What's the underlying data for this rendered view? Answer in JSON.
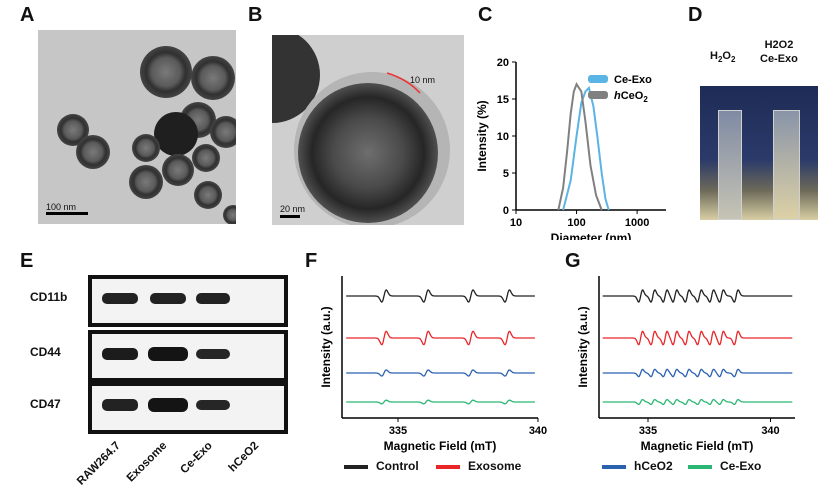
{
  "panels": {
    "A": {
      "label": "A",
      "scale": "100 nm"
    },
    "B": {
      "label": "B",
      "scale": "20 nm",
      "annotation": "10 nm"
    },
    "C": {
      "label": "C"
    },
    "D": {
      "label": "D",
      "cuvette1_top": "H",
      "cuvette1_sub": "2",
      "cuvette1_tail": "O",
      "cuvette1_sub2": "2",
      "cuvette2_line1": "H2O2",
      "cuvette2_line2": "Ce-Exo"
    },
    "E": {
      "label": "E",
      "rows": [
        "CD11b",
        "CD44",
        "CD47"
      ],
      "lanes": [
        "RAW264.7",
        "Exosome",
        "Ce-Exo",
        "hCeO2"
      ]
    },
    "F": {
      "label": "F"
    },
    "G": {
      "label": "G"
    }
  },
  "legend_fg": [
    {
      "name": "Control",
      "color": "#222222"
    },
    {
      "name": "Exosome",
      "color": "#e8262a"
    },
    {
      "name": "hCeO2",
      "color": "#2a62b0"
    },
    {
      "name": "Ce-Exo",
      "color": "#2bb673"
    }
  ],
  "chart_data": [
    {
      "type": "line",
      "panel": "C",
      "xlabel": "Diameter (nm)",
      "ylabel": "Intensity (%)",
      "xscale": "log",
      "xlim": [
        10,
        3000
      ],
      "ylim": [
        0,
        20
      ],
      "xticks": [
        "10",
        "100",
        "1000"
      ],
      "yticks": [
        "0",
        "5",
        "10",
        "15",
        "20"
      ],
      "legend_position": "top-right",
      "series": [
        {
          "name": "Ce-Exo",
          "color": "#5ab4e5",
          "x": [
            60,
            80,
            100,
            120,
            140,
            160,
            190,
            220,
            260,
            300,
            340
          ],
          "y": [
            0,
            4,
            10,
            14.5,
            16,
            16.5,
            14,
            10,
            5,
            1.5,
            0
          ]
        },
        {
          "name": "hCeO2",
          "color": "#808080",
          "x": [
            50,
            60,
            70,
            80,
            90,
            100,
            120,
            140,
            170,
            210,
            260
          ],
          "y": [
            0,
            3,
            8,
            13,
            16,
            17,
            16,
            12,
            6,
            2,
            0
          ]
        }
      ]
    },
    {
      "type": "line",
      "panel": "F",
      "xlabel": "Magnetic Field (mT)",
      "ylabel": "Intensity (a.u.)",
      "xlim": [
        333,
        340
      ],
      "xticks": [
        "335",
        "340"
      ],
      "series": [
        {
          "name": "Control",
          "color": "#222222",
          "offset": 4,
          "amp": 10,
          "lines": [
            334.5,
            336.0,
            337.6,
            338.9
          ]
        },
        {
          "name": "Exosome",
          "color": "#e8262a",
          "offset": 3,
          "amp": 11,
          "lines": [
            334.5,
            336.0,
            337.6,
            338.9
          ]
        },
        {
          "name": "hCeO2",
          "color": "#2a62b0",
          "offset": 2,
          "amp": 5,
          "lines": [
            334.5,
            336.0,
            337.6,
            338.9
          ]
        },
        {
          "name": "Ce-Exo",
          "color": "#2bb673",
          "offset": 1,
          "amp": 3,
          "lines": [
            334.5,
            336.0,
            337.6,
            338.9
          ]
        }
      ]
    },
    {
      "type": "line",
      "panel": "G",
      "xlabel": "Magnetic Field (mT)",
      "ylabel": "Intensity (a.u.)",
      "xlim": [
        333,
        341
      ],
      "xticks": [
        "335",
        "340"
      ],
      "series": [
        {
          "name": "Control",
          "color": "#222222",
          "offset": 4,
          "amp": 10,
          "lines": [
            334.7,
            335.2,
            335.7,
            336.1,
            336.6,
            337.1,
            337.6,
            338.0,
            338.6
          ]
        },
        {
          "name": "Exosome",
          "color": "#e8262a",
          "offset": 3,
          "amp": 11,
          "lines": [
            334.7,
            335.2,
            335.7,
            336.1,
            336.6,
            337.1,
            337.6,
            338.0,
            338.6
          ]
        },
        {
          "name": "hCeO2",
          "color": "#2a62b0",
          "offset": 2,
          "amp": 6,
          "lines": [
            334.7,
            335.2,
            335.7,
            336.1,
            336.6,
            337.1,
            337.6,
            338.0,
            338.6
          ]
        },
        {
          "name": "Ce-Exo",
          "color": "#2bb673",
          "offset": 1,
          "amp": 4,
          "lines": [
            334.7,
            335.2,
            335.7,
            336.1,
            336.6,
            337.1,
            337.6,
            338.0,
            338.6
          ]
        }
      ]
    }
  ]
}
